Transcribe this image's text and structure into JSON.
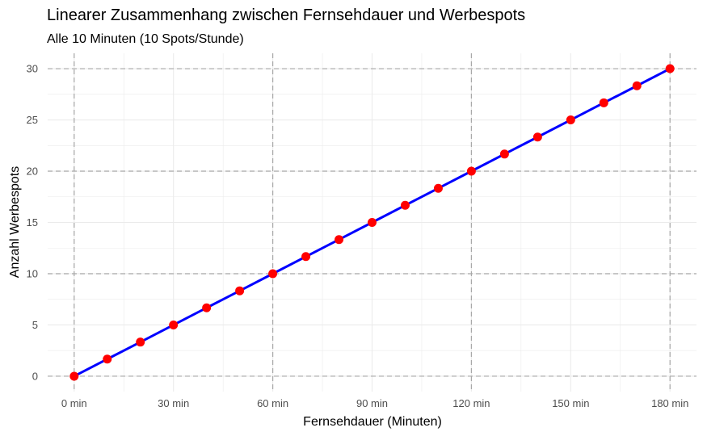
{
  "chart_data": {
    "type": "line",
    "title": "Linearer Zusammenhang zwischen Fernsehdauer und Werbespots",
    "subtitle": "Alle 10 Minuten (10 Spots/Stunde)",
    "xlabel": "Fernsehdauer (Minuten)",
    "ylabel": "Anzahl Werbespots",
    "xlim": [
      -8,
      188
    ],
    "ylim": [
      -1.5,
      31.5
    ],
    "x_ticks": [
      0,
      30,
      60,
      90,
      120,
      150,
      180
    ],
    "x_tick_labels": [
      "0 min",
      "30 min",
      "60 min",
      "90 min",
      "120 min",
      "150 min",
      "180 min"
    ],
    "y_ticks": [
      0,
      5,
      10,
      15,
      20,
      25,
      30
    ],
    "y_tick_labels": [
      "0",
      "5",
      "10",
      "15",
      "20",
      "25",
      "30"
    ],
    "reference_lines_x": [
      0,
      60,
      120,
      180
    ],
    "reference_lines_y": [
      0,
      10,
      20,
      30
    ],
    "grid": true,
    "series": [
      {
        "name": "Werbespots",
        "line_color": "#0000ff",
        "point_color": "#ff0000",
        "x": [
          0,
          10,
          20,
          30,
          40,
          50,
          60,
          70,
          80,
          90,
          100,
          110,
          120,
          130,
          140,
          150,
          160,
          170,
          180
        ],
        "values": [
          0,
          1.67,
          3.33,
          5,
          6.67,
          8.33,
          10,
          11.67,
          13.33,
          15,
          16.67,
          18.33,
          20,
          21.67,
          23.33,
          25,
          26.67,
          28.33,
          30
        ]
      }
    ]
  }
}
